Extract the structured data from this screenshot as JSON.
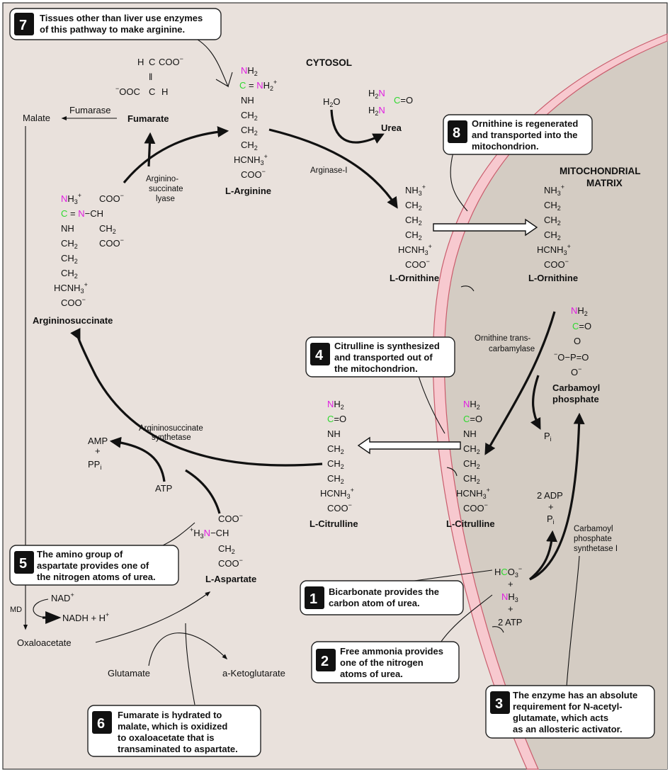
{
  "colors": {
    "cytosol_bg": "#e9e1dc",
    "matrix_bg": "#d4ccc3",
    "membrane": "#f7c9cf",
    "membrane_edge": "#c95c6c",
    "nitrogen": "#e01fe0",
    "carbon": "#2fd82f",
    "callout_number_bg": "#111111"
  },
  "compartments": {
    "cytosol": "CYTOSOL",
    "matrix_line1": "MITOCHONDRIAL",
    "matrix_line2": "MATRIX"
  },
  "compounds": {
    "arginine": "L-Arginine",
    "ornithine_cyto": "L-Ornithine",
    "ornithine_mito": "L-Ornithine",
    "citrulline_cyto": "L-Citrulline",
    "citrulline_mito": "L-Citrulline",
    "argininosuccinate": "Argininosuccinate",
    "aspartate": "L-Aspartate",
    "fumarate": "Fumarate",
    "urea": "Urea",
    "carbamoyl_line1": "Carbamoyl",
    "carbamoyl_line2": "phosphate",
    "malate": "Malate",
    "oxaloacetate": "Oxaloacetate",
    "glutamate": "Glutamate",
    "ketoglutarate": "a-Ketoglutarate"
  },
  "enzymes": {
    "fumarase": "Fumarase",
    "arginase": "Arginase-I",
    "lyase_1": "Arginino-",
    "lyase_2": "succinate",
    "lyase_3": "lyase",
    "synthetase_1": "Argininosuccinate",
    "synthetase_2": "synthetase",
    "otc_1": "Ornithine trans-",
    "otc_2": "carbamylase",
    "cps_1": "Carbamoyl",
    "cps_2": "phosphate",
    "cps_3": "synthetase I",
    "md": "MD"
  },
  "cofactors": {
    "amp": "AMP",
    "plus": "+",
    "ppi": "PPi",
    "atp": "ATP",
    "nad": "NAD+",
    "nadh": "NADH + H+",
    "h2o": "H2O",
    "pi": "Pi",
    "adp2": "2 ADP",
    "atp2": "2 ATP"
  },
  "callouts": [
    {
      "num": "1",
      "lines": [
        "Bicarbonate provides the",
        "carbon atom of urea."
      ]
    },
    {
      "num": "2",
      "lines": [
        "Free ammonia provides",
        "one of the nitrogen",
        "atoms of urea."
      ]
    },
    {
      "num": "3",
      "lines": [
        "The enzyme has an absolute",
        "requirement for N-acetyl-",
        "glutamate, which acts",
        "as an allosteric activator."
      ]
    },
    {
      "num": "4",
      "lines": [
        "Citrulline is synthesized",
        "and transported out of",
        "the mitochondrion."
      ]
    },
    {
      "num": "5",
      "lines": [
        "The amino group of",
        "aspartate provides one of",
        "the nitrogen atoms of urea."
      ]
    },
    {
      "num": "6",
      "lines": [
        "Fumarate is hydrated to",
        "malate, which is oxidized",
        "to oxaloacetate that is",
        "transaminated to aspartate."
      ]
    },
    {
      "num": "7",
      "lines": [
        "Tissues other than liver use enzymes",
        "of this pathway to make arginine."
      ]
    },
    {
      "num": "8",
      "lines": [
        "Ornithine is regenerated",
        "and transported into the",
        "mitochondrion."
      ]
    }
  ]
}
